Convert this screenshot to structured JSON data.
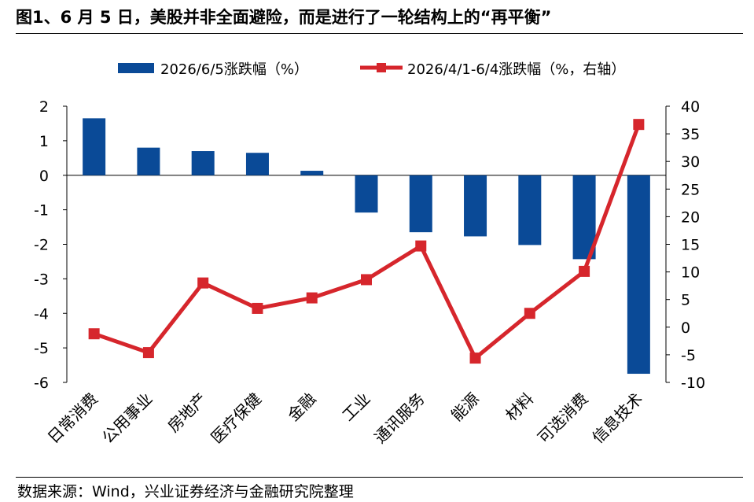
{
  "title": "图1、6 月 5 日，美股并非全面避险，而是进行了一轮结构上的“再平衡”",
  "source": "数据来源：Wind，兴业证券经济与金融研究院整理",
  "colors": {
    "bar": "#0a4a97",
    "line": "#d6262c",
    "axis": "#000000"
  },
  "chart_data": {
    "type": "bar",
    "categories": [
      "日常消费",
      "公用事业",
      "房地产",
      "医疗保健",
      "金融",
      "工业",
      "通讯服务",
      "能源",
      "材料",
      "可选消费",
      "信息技术"
    ],
    "series": [
      {
        "name": "2026/6/5涨跌幅（%）",
        "type": "bar",
        "axis": "left",
        "values": [
          1.65,
          0.8,
          0.7,
          0.65,
          0.13,
          -1.08,
          -1.65,
          -1.77,
          -2.02,
          -2.43,
          -5.75
        ]
      },
      {
        "name": "2026/4/1-6/4涨跌幅（%，右轴）",
        "type": "line",
        "axis": "right",
        "values": [
          -1.2,
          -4.6,
          8.0,
          3.4,
          5.3,
          8.6,
          14.7,
          -5.6,
          2.5,
          10.1,
          36.7
        ]
      }
    ],
    "ylim_left": [
      -6,
      2
    ],
    "yticks_left": [
      2,
      1,
      0,
      -1,
      -2,
      -3,
      -4,
      -5,
      -6
    ],
    "ylim_right": [
      -10,
      40
    ],
    "yticks_right": [
      40,
      35,
      30,
      25,
      20,
      15,
      10,
      5,
      0,
      -5,
      -10
    ],
    "legend_position": "top",
    "grid": false
  }
}
